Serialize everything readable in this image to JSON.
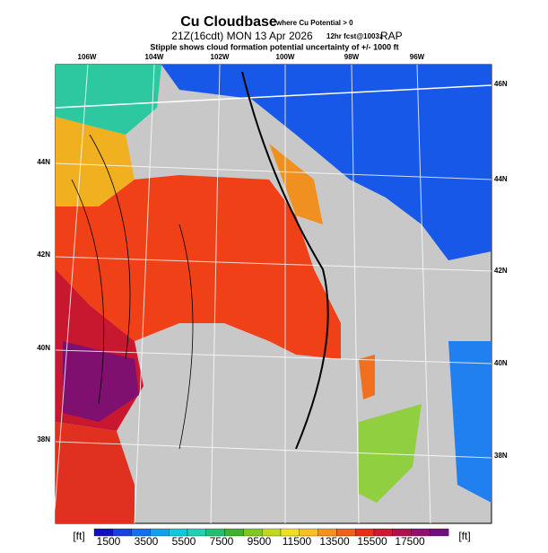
{
  "header": {
    "title": "Cu Cloudbase",
    "title_note": "where Cu Potential > 0",
    "valid": "21Z(16cdt) MON 13 Apr 2026",
    "forecast": "12hr fcst@1003z",
    "model": "RAP",
    "subtitle": "Stipple shows cloud formation potential uncertainty of +/- 1000 ft"
  },
  "map": {
    "lon_labels": [
      "106W",
      "104W",
      "102W",
      "100W",
      "98W",
      "96W"
    ],
    "lat_labels_left": [
      "44N",
      "42N",
      "40N",
      "38N"
    ],
    "lat_labels_right": [
      "46N",
      "44N",
      "42N",
      "40N",
      "38N"
    ]
  },
  "colorbar": {
    "unit_left": "[ft]",
    "unit_right": "[ft]",
    "labels": [
      "1500",
      "3500",
      "5500",
      "7500",
      "9500",
      "11500",
      "13500",
      "15500",
      "17500"
    ]
  }
}
